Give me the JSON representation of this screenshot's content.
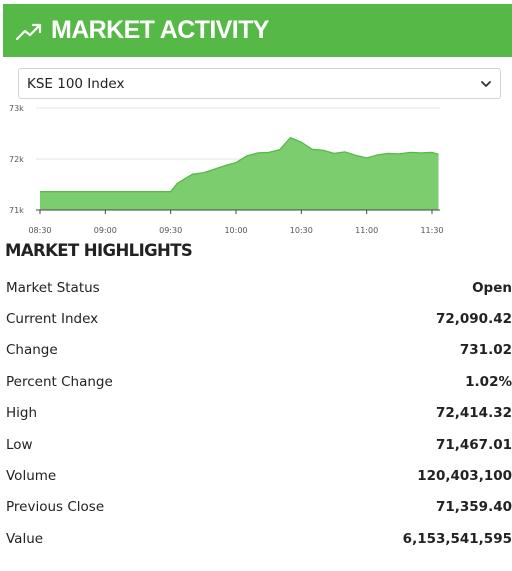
{
  "header": {
    "title": "MARKET ACTIVITY",
    "icon": "trending-up-icon",
    "bg_color": "#56b947"
  },
  "index_select": {
    "selected": "KSE 100 Index",
    "icon": "chevron-down-icon"
  },
  "chart_data": {
    "type": "area",
    "color": "#56b947",
    "y_ticks": [
      "73k",
      "72k",
      "71k"
    ],
    "x_ticks": [
      "08:30",
      "09:00",
      "09:30",
      "10:00",
      "10:30",
      "11:00",
      "11:30"
    ],
    "ylim": [
      71000,
      73000
    ],
    "grid": true,
    "series": [
      {
        "x": [
          "08:30",
          "08:35",
          "08:40",
          "08:45",
          "08:50",
          "08:55",
          "09:00",
          "09:05",
          "09:10",
          "09:15",
          "09:20",
          "09:25",
          "09:30",
          "09:33",
          "09:36",
          "09:40",
          "09:45",
          "09:50",
          "09:55",
          "10:00",
          "10:05",
          "10:10",
          "10:15",
          "10:20",
          "10:25",
          "10:30",
          "10:35",
          "10:40",
          "10:45",
          "10:50",
          "10:55",
          "11:00",
          "11:05",
          "11:10",
          "11:15",
          "11:20",
          "11:25",
          "11:30",
          "11:33"
        ],
        "y": [
          71359,
          71359,
          71359,
          71359,
          71359,
          71359,
          71359,
          71359,
          71359,
          71359,
          71359,
          71359,
          71359,
          71520,
          71600,
          71700,
          71730,
          71800,
          71870,
          71930,
          72060,
          72120,
          72130,
          72180,
          72420,
          72330,
          72190,
          72170,
          72110,
          72140,
          72070,
          72020,
          72080,
          72110,
          72100,
          72130,
          72120,
          72130,
          72090
        ]
      }
    ]
  },
  "highlights": {
    "title": "MARKET HIGHLIGHTS",
    "rows": [
      {
        "label": "Market Status",
        "value": "Open"
      },
      {
        "label": "Current Index",
        "value": "72,090.42"
      },
      {
        "label": "Change",
        "value": "731.02"
      },
      {
        "label": "Percent Change",
        "value": "1.02%"
      },
      {
        "label": "High",
        "value": "72,414.32"
      },
      {
        "label": "Low",
        "value": "71,467.01"
      },
      {
        "label": "Volume",
        "value": "120,403,100"
      },
      {
        "label": "Previous Close",
        "value": "71,359.40"
      },
      {
        "label": "Value",
        "value": "6,153,541,595"
      }
    ]
  }
}
